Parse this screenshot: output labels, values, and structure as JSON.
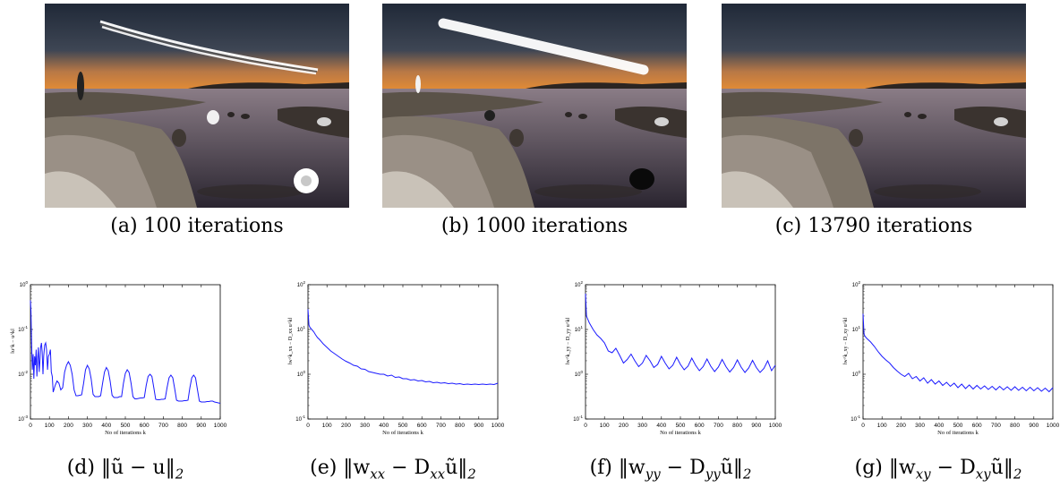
{
  "photos": [
    {
      "id": "a",
      "label": "(a)",
      "caption": "100 iterations"
    },
    {
      "id": "b",
      "label": "(b)",
      "caption": "1000 iterations"
    },
    {
      "id": "c",
      "label": "(c)",
      "caption": "13790 iterations"
    }
  ],
  "colors": {
    "line": "#1a1aff",
    "sky_top": "#27303f",
    "horizon": "#d9823c",
    "water": "#4a4550",
    "rock": "#7d7468"
  },
  "chart_data": [
    {
      "type": "line",
      "label": "(d)",
      "caption_parts": [
        "‖ũ − u‖",
        "2"
      ],
      "ylabel": "‖u^k − u^k‖",
      "xlabel": "No of iterations k",
      "xlim": [
        0,
        1000
      ],
      "ylim_log10": [
        -3,
        0
      ],
      "log_y": true,
      "xticks": [
        "0",
        "100",
        "200",
        "300",
        "400",
        "500",
        "600",
        "700",
        "800",
        "900",
        "1000"
      ],
      "yticks": [
        "10^0",
        "10^-1",
        "10^-2",
        "10^-3"
      ],
      "x": [
        0,
        3,
        6,
        10,
        14,
        18,
        22,
        26,
        30,
        34,
        38,
        42,
        46,
        50,
        54,
        58,
        62,
        66,
        70,
        75,
        80,
        85,
        90,
        95,
        100,
        105,
        110,
        115,
        120,
        130,
        140,
        150,
        160,
        170,
        180,
        190,
        200,
        210,
        220,
        230,
        240,
        250,
        260,
        270,
        280,
        290,
        300,
        310,
        320,
        330,
        340,
        350,
        360,
        370,
        380,
        390,
        400,
        410,
        420,
        430,
        440,
        450,
        460,
        470,
        480,
        490,
        500,
        510,
        520,
        530,
        540,
        550,
        560,
        570,
        580,
        590,
        600,
        610,
        620,
        630,
        640,
        650,
        660,
        670,
        680,
        690,
        700,
        710,
        720,
        730,
        740,
        750,
        760,
        770,
        780,
        790,
        800,
        810,
        820,
        830,
        840,
        850,
        860,
        870,
        880,
        890,
        900,
        910,
        920,
        930,
        940,
        950,
        960,
        970,
        980,
        990,
        1000
      ],
      "y_log10": [
        -0.35,
        -0.6,
        -1.3,
        -1.9,
        -1.55,
        -2.1,
        -1.6,
        -1.8,
        -1.45,
        -2.05,
        -1.65,
        -1.4,
        -1.95,
        -1.7,
        -1.4,
        -1.3,
        -1.5,
        -2.0,
        -1.6,
        -1.35,
        -1.3,
        -1.45,
        -1.9,
        -1.6,
        -1.55,
        -1.45,
        -1.95,
        -2.05,
        -2.4,
        -2.25,
        -2.15,
        -2.2,
        -2.35,
        -2.3,
        -1.95,
        -1.8,
        -1.72,
        -1.8,
        -2.0,
        -2.35,
        -2.48,
        -2.48,
        -2.47,
        -2.46,
        -2.2,
        -1.9,
        -1.8,
        -1.88,
        -2.1,
        -2.45,
        -2.5,
        -2.5,
        -2.5,
        -2.48,
        -2.2,
        -1.95,
        -1.85,
        -1.92,
        -2.15,
        -2.47,
        -2.52,
        -2.52,
        -2.52,
        -2.5,
        -2.5,
        -2.2,
        -1.98,
        -1.9,
        -1.96,
        -2.2,
        -2.5,
        -2.55,
        -2.55,
        -2.54,
        -2.53,
        -2.53,
        -2.52,
        -2.25,
        -2.05,
        -2.0,
        -2.05,
        -2.3,
        -2.56,
        -2.57,
        -2.57,
        -2.56,
        -2.56,
        -2.55,
        -2.3,
        -2.08,
        -2.02,
        -2.08,
        -2.32,
        -2.58,
        -2.6,
        -2.6,
        -2.6,
        -2.59,
        -2.59,
        -2.58,
        -2.3,
        -2.08,
        -2.02,
        -2.08,
        -2.35,
        -2.6,
        -2.62,
        -2.62,
        -2.62,
        -2.61,
        -2.61,
        -2.6,
        -2.6,
        -2.62,
        -2.63,
        -2.64,
        -2.65
      ]
    },
    {
      "type": "line",
      "label": "(e)",
      "caption_parts": [
        "‖w",
        "xx",
        " − D",
        "xx",
        "ũ‖",
        "2"
      ],
      "ylabel": "‖w^k_xx − D_xx u^k‖",
      "xlabel": "No of iterations k",
      "xlim": [
        0,
        1000
      ],
      "ylim_log10": [
        -1,
        2
      ],
      "log_y": true,
      "xticks": [
        "0",
        "100",
        "200",
        "300",
        "400",
        "500",
        "600",
        "700",
        "800",
        "900",
        "1000"
      ],
      "yticks": [
        "10^2",
        "10^1",
        "10^0",
        "10^-1"
      ],
      "x": [
        0,
        5,
        10,
        20,
        30,
        40,
        50,
        60,
        80,
        100,
        120,
        140,
        160,
        180,
        200,
        220,
        240,
        260,
        280,
        300,
        320,
        340,
        360,
        380,
        400,
        420,
        440,
        460,
        480,
        500,
        520,
        540,
        560,
        580,
        600,
        620,
        640,
        660,
        680,
        700,
        720,
        740,
        760,
        780,
        800,
        820,
        840,
        860,
        880,
        900,
        920,
        940,
        960,
        980,
        1000
      ],
      "y_log10": [
        1.45,
        1.1,
        1.05,
        1.0,
        0.95,
        0.88,
        0.82,
        0.78,
        0.68,
        0.6,
        0.52,
        0.46,
        0.4,
        0.34,
        0.29,
        0.25,
        0.2,
        0.18,
        0.12,
        0.11,
        0.06,
        0.04,
        0.02,
        0.0,
        0.0,
        -0.04,
        -0.02,
        -0.07,
        -0.06,
        -0.1,
        -0.1,
        -0.13,
        -0.12,
        -0.15,
        -0.14,
        -0.17,
        -0.16,
        -0.19,
        -0.18,
        -0.2,
        -0.19,
        -0.21,
        -0.2,
        -0.22,
        -0.21,
        -0.23,
        -0.22,
        -0.23,
        -0.22,
        -0.23,
        -0.22,
        -0.23,
        -0.22,
        -0.23,
        -0.2
      ]
    },
    {
      "type": "line",
      "label": "(f)",
      "caption_parts": [
        "‖w",
        "yy",
        " − D",
        "yy",
        "ũ‖",
        "2"
      ],
      "ylabel": "‖w^k_yy − D_yy u^k‖",
      "xlabel": "No of iterations k",
      "xlim": [
        0,
        1000
      ],
      "ylim_log10": [
        -1,
        2
      ],
      "log_y": true,
      "xticks": [
        "0",
        "100",
        "200",
        "300",
        "400",
        "500",
        "600",
        "700",
        "800",
        "900",
        "1000"
      ],
      "yticks": [
        "10^2",
        "10^1",
        "10^0",
        "10^-1"
      ],
      "x": [
        0,
        5,
        10,
        20,
        40,
        60,
        80,
        100,
        120,
        140,
        160,
        180,
        200,
        220,
        240,
        260,
        280,
        300,
        320,
        340,
        360,
        380,
        400,
        420,
        440,
        460,
        480,
        500,
        520,
        540,
        560,
        580,
        600,
        620,
        640,
        660,
        680,
        700,
        720,
        740,
        760,
        780,
        800,
        820,
        840,
        860,
        880,
        900,
        920,
        940,
        960,
        980,
        1000
      ],
      "y_log10": [
        1.8,
        1.3,
        1.25,
        1.15,
        1.0,
        0.88,
        0.8,
        0.7,
        0.52,
        0.48,
        0.58,
        0.42,
        0.25,
        0.33,
        0.45,
        0.3,
        0.17,
        0.25,
        0.42,
        0.3,
        0.15,
        0.22,
        0.4,
        0.25,
        0.12,
        0.2,
        0.38,
        0.22,
        0.1,
        0.18,
        0.36,
        0.2,
        0.08,
        0.17,
        0.34,
        0.18,
        0.06,
        0.16,
        0.33,
        0.17,
        0.05,
        0.15,
        0.32,
        0.16,
        0.04,
        0.14,
        0.31,
        0.15,
        0.04,
        0.13,
        0.3,
        0.08,
        0.2
      ]
    },
    {
      "type": "line",
      "label": "(g)",
      "caption_parts": [
        "‖w",
        "xy",
        " − D",
        "xy",
        "ũ‖",
        "2"
      ],
      "ylabel": "‖w^k_xy − D_xy u^k‖",
      "xlabel": "No of iterations k",
      "xlim": [
        0,
        1000
      ],
      "ylim_log10": [
        -1,
        2
      ],
      "log_y": true,
      "xticks": [
        "0",
        "100",
        "200",
        "300",
        "400",
        "500",
        "600",
        "700",
        "800",
        "900",
        "1000"
      ],
      "yticks": [
        "10^2",
        "10^1",
        "10^0",
        "10^-1"
      ],
      "x": [
        0,
        5,
        10,
        20,
        40,
        60,
        80,
        100,
        120,
        140,
        160,
        180,
        200,
        220,
        240,
        260,
        280,
        300,
        320,
        340,
        360,
        380,
        400,
        420,
        440,
        460,
        480,
        500,
        520,
        540,
        560,
        580,
        600,
        620,
        640,
        660,
        680,
        700,
        720,
        740,
        760,
        780,
        800,
        820,
        840,
        860,
        880,
        900,
        920,
        940,
        960,
        980,
        1000
      ],
      "y_log10": [
        1.35,
        0.9,
        0.85,
        0.8,
        0.72,
        0.62,
        0.5,
        0.4,
        0.32,
        0.25,
        0.15,
        0.07,
        0.0,
        -0.05,
        0.02,
        -0.1,
        -0.05,
        -0.15,
        -0.08,
        -0.2,
        -0.12,
        -0.22,
        -0.15,
        -0.25,
        -0.18,
        -0.27,
        -0.2,
        -0.3,
        -0.22,
        -0.32,
        -0.24,
        -0.33,
        -0.25,
        -0.33,
        -0.26,
        -0.34,
        -0.27,
        -0.35,
        -0.27,
        -0.35,
        -0.28,
        -0.36,
        -0.28,
        -0.36,
        -0.29,
        -0.37,
        -0.29,
        -0.37,
        -0.3,
        -0.38,
        -0.31,
        -0.39,
        -0.3
      ]
    }
  ]
}
